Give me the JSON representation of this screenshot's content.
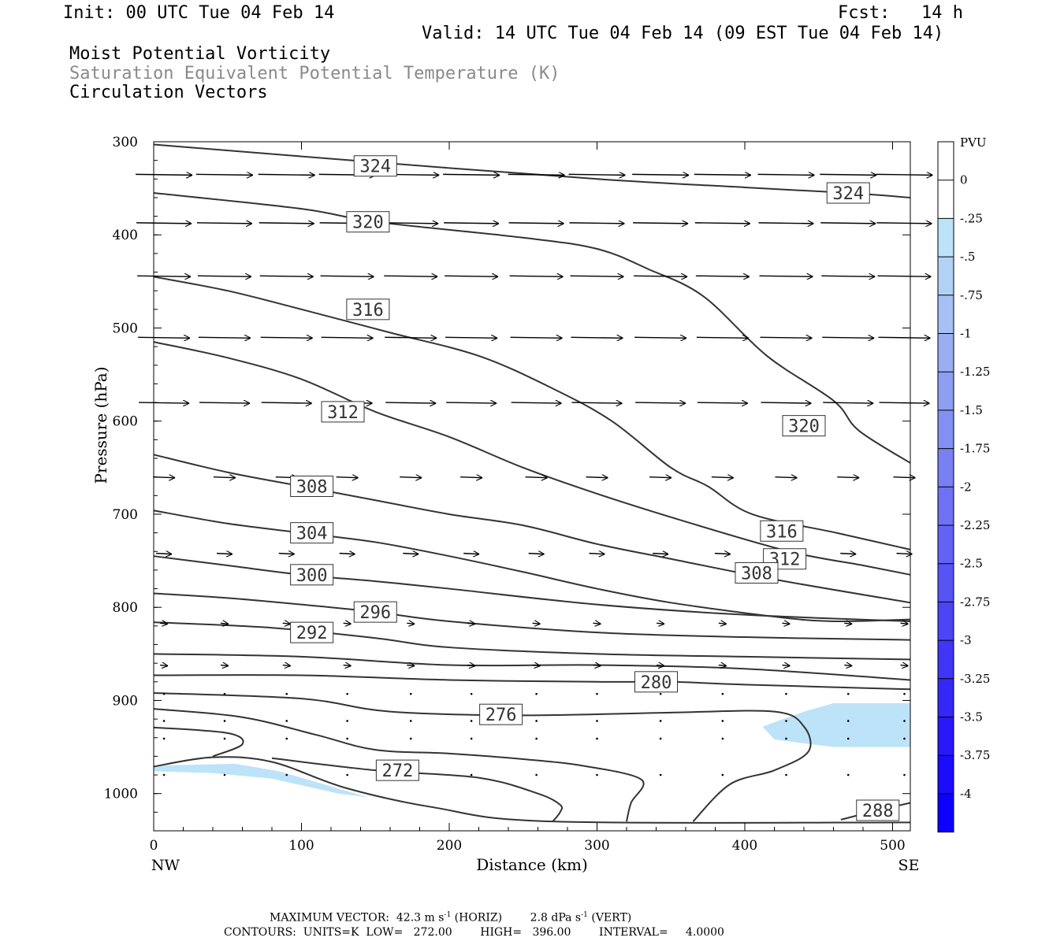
{
  "header": {
    "init": "Init: 00 UTC Tue 04 Feb 14",
    "fcst": "Fcst:   14 h",
    "valid": "Valid: 14 UTC Tue 04 Feb 14 (09 EST Tue 04 Feb 14)",
    "line1": "Moist Potential Vorticity",
    "line2": "Saturation Equivalent Potential Temperature (K)",
    "line3": "Circulation Vectors"
  },
  "footer": {
    "max_vector_a": "MAXIMUM VECTOR:  42.3 m s",
    "max_vector_b": " (HORIZ)",
    "max_vector_c": "2.8 dPa s",
    "max_vector_d": " (VERT)",
    "sup": "-1",
    "contours": "CONTOURS:  UNITS=K  LOW=   272.00        HIGH=   396.00        INTERVAL=     4.0000"
  },
  "chart_data": {
    "type": "contour",
    "xlabel": "Distance (km)",
    "ylabel": "Pressure (hPa)",
    "x_range": [
      0,
      512
    ],
    "y_range": [
      300,
      1040
    ],
    "x_ticks": [
      0,
      100,
      200,
      300,
      400,
      500
    ],
    "y_ticks": [
      300,
      400,
      500,
      600,
      700,
      800,
      900,
      1000
    ],
    "x_end_labels": {
      "left": "NW",
      "right": "SE"
    },
    "colorbar": {
      "title": "PVU",
      "ticks": [
        "0",
        "-.25",
        "-.5",
        "-.75",
        "-1",
        "-1.25",
        "-1.5",
        "-1.75",
        "-2",
        "-2.25",
        "-2.5",
        "-2.75",
        "-3",
        "-3.25",
        "-3.5",
        "-3.75",
        "-4"
      ],
      "colors": [
        "#ffffff",
        "#ffffff",
        "#bde3f9",
        "#b1d2f5",
        "#a6c0f3",
        "#9aaff1",
        "#8e9ff2",
        "#8390f2",
        "#7981f2",
        "#6e72f3",
        "#6263f4",
        "#5754f5",
        "#4b45f6",
        "#3f36f7",
        "#3428f8",
        "#2919fa",
        "#1c0cfc",
        "#0d00fe"
      ]
    },
    "contour_lines": [
      {
        "value": "324",
        "points": [
          [
            0,
            303
          ],
          [
            150,
            322
          ],
          [
            300,
            340
          ],
          [
            400,
            349
          ],
          [
            470,
            355
          ],
          [
            512,
            360
          ]
        ]
      },
      {
        "value": "320",
        "points": [
          [
            0,
            355
          ],
          [
            100,
            372
          ],
          [
            150,
            386
          ],
          [
            250,
            403
          ],
          [
            300,
            415
          ],
          [
            335,
            437
          ],
          [
            372,
            466
          ],
          [
            415,
            530
          ],
          [
            460,
            578
          ],
          [
            477,
            610
          ],
          [
            512,
            645
          ]
        ]
      },
      {
        "value": "316",
        "points": [
          [
            0,
            445
          ],
          [
            50,
            460
          ],
          [
            100,
            480
          ],
          [
            160,
            505
          ],
          [
            220,
            530
          ],
          [
            270,
            565
          ],
          [
            310,
            600
          ],
          [
            350,
            650
          ],
          [
            375,
            670
          ],
          [
            405,
            700
          ],
          [
            462,
            720
          ],
          [
            512,
            738
          ]
        ]
      },
      {
        "value": "312",
        "points": [
          [
            0,
            515
          ],
          [
            50,
            532
          ],
          [
            100,
            555
          ],
          [
            150,
            590
          ],
          [
            200,
            617
          ],
          [
            250,
            650
          ],
          [
            300,
            678
          ],
          [
            360,
            708
          ],
          [
            430,
            740
          ],
          [
            480,
            755
          ],
          [
            512,
            765
          ]
        ]
      },
      {
        "value": "308",
        "points": [
          [
            0,
            636
          ],
          [
            50,
            655
          ],
          [
            100,
            670
          ],
          [
            150,
            685
          ],
          [
            200,
            700
          ],
          [
            250,
            712
          ],
          [
            300,
            732
          ],
          [
            350,
            748
          ],
          [
            420,
            770
          ],
          [
            512,
            795
          ]
        ]
      },
      {
        "value": "304",
        "points": [
          [
            0,
            696
          ],
          [
            50,
            710
          ],
          [
            100,
            720
          ],
          [
            150,
            730
          ],
          [
            200,
            745
          ],
          [
            250,
            762
          ],
          [
            300,
            780
          ],
          [
            350,
            795
          ],
          [
            420,
            810
          ],
          [
            460,
            815
          ],
          [
            512,
            813
          ]
        ]
      },
      {
        "value": "300",
        "points": [
          [
            0,
            745
          ],
          [
            50,
            755
          ],
          [
            100,
            765
          ],
          [
            150,
            772
          ],
          [
            200,
            780
          ],
          [
            300,
            797
          ],
          [
            400,
            808
          ],
          [
            512,
            815
          ]
        ]
      },
      {
        "value": "296",
        "points": [
          [
            0,
            785
          ],
          [
            50,
            790
          ],
          [
            100,
            797
          ],
          [
            150,
            805
          ],
          [
            200,
            815
          ],
          [
            300,
            827
          ],
          [
            400,
            832
          ],
          [
            512,
            835
          ]
        ]
      },
      {
        "value": "292",
        "points": [
          [
            0,
            816
          ],
          [
            80,
            822
          ],
          [
            150,
            833
          ],
          [
            200,
            843
          ],
          [
            300,
            850
          ],
          [
            400,
            853
          ],
          [
            512,
            856
          ]
        ]
      },
      {
        "value": "288",
        "points": [
          [
            0,
            850
          ],
          [
            100,
            853
          ],
          [
            200,
            862
          ],
          [
            300,
            862
          ],
          [
            400,
            866
          ],
          [
            512,
            878
          ]
        ]
      },
      {
        "value": "288",
        "points": [
          [
            465,
            1028
          ],
          [
            490,
            1018
          ],
          [
            512,
            1010
          ]
        ]
      },
      {
        "value": "284",
        "points": [
          [
            0,
            873
          ],
          [
            100,
            873
          ],
          [
            200,
            878
          ],
          [
            300,
            880
          ],
          [
            350,
            880
          ],
          [
            400,
            883
          ],
          [
            512,
            888
          ]
        ]
      },
      {
        "value": "284",
        "points": [
          [
            0,
            892
          ],
          [
            100,
            898
          ],
          [
            160,
            912
          ],
          [
            250,
            916
          ],
          [
            350,
            913
          ],
          [
            420,
            912
          ],
          [
            440,
            928
          ],
          [
            443,
            955
          ],
          [
            420,
            975
          ],
          [
            390,
            990
          ],
          [
            365,
            1030
          ]
        ]
      },
      {
        "value": "280",
        "points": [
          [
            0,
            909
          ],
          [
            60,
            918
          ],
          [
            110,
            937
          ],
          [
            150,
            953
          ],
          [
            200,
            957
          ],
          [
            250,
            963
          ],
          [
            290,
            970
          ],
          [
            330,
            985
          ],
          [
            323,
            1010
          ],
          [
            320,
            1030
          ]
        ]
      },
      {
        "value": "276",
        "points": [
          [
            0,
            929
          ],
          [
            50,
            935
          ],
          [
            60,
            947
          ],
          [
            40,
            960
          ]
        ]
      },
      {
        "value": "276",
        "points": [
          [
            80,
            962
          ],
          [
            150,
            975
          ],
          [
            220,
            983
          ],
          [
            260,
            1000
          ],
          [
            275,
            1012
          ],
          [
            275,
            1020
          ],
          [
            270,
            1030
          ]
        ]
      },
      {
        "value": "272",
        "points": [
          [
            0,
            971
          ],
          [
            40,
            961
          ],
          [
            80,
            966
          ],
          [
            130,
            994
          ],
          [
            190,
            1015
          ],
          [
            270,
            1030
          ],
          [
            512,
            1031
          ]
        ]
      }
    ],
    "vector_grid": {
      "x": [
        7,
        48,
        90,
        131,
        174,
        215,
        259,
        300,
        343,
        385,
        428,
        470,
        508
      ],
      "y": [
        335,
        387,
        444,
        510,
        580,
        660,
        742,
        817,
        862,
        893,
        922,
        941,
        980
      ]
    }
  }
}
